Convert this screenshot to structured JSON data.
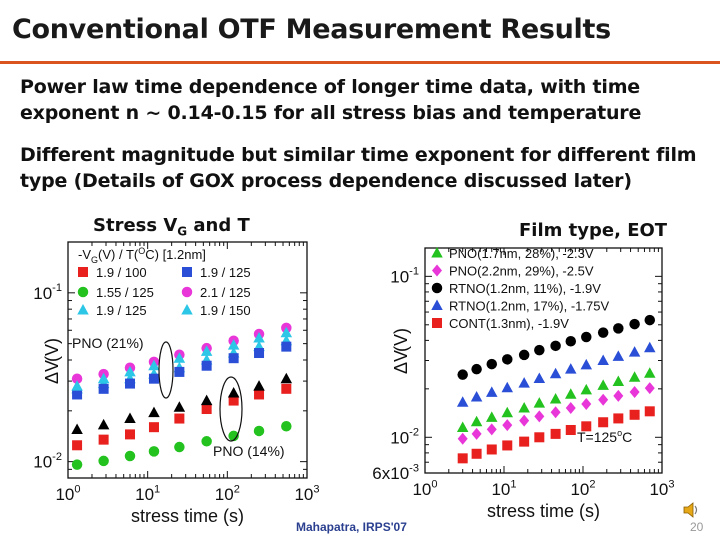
{
  "slide": {
    "title": "Conventional OTF Measurement Results",
    "para1_line1": "Power law time dependence of longer time data, with time",
    "para1_line2": "exponent n ~ 0.14-0.15 for all stress bias and temperature",
    "para2_line1": "Different magnitude but similar time exponent for different film",
    "para2_line2": "type (Details of GOX process dependence discussed later)",
    "left_label_main": "Stress V",
    "left_label_sub": "G",
    "left_label_tail": " and T",
    "right_label": "Film type, EOT",
    "footer": "Mahapatra, IRPS'07",
    "page_number": "20",
    "accent_color": "#d9541e",
    "icons": [
      "speaker-icon"
    ]
  },
  "chart_data": [
    {
      "type": "scatter",
      "xscale": "log",
      "yscale": "log",
      "xlim": [
        1,
        1000
      ],
      "ylim": [
        0.008,
        0.2
      ],
      "xlabel": "stress time (s)",
      "ylabel": "ΔV",
      "xticks": [
        {
          "base": "10",
          "exp": "0"
        },
        {
          "base": "10",
          "exp": "1"
        },
        {
          "base": "10",
          "exp": "2"
        },
        {
          "base": "10",
          "exp": "3"
        }
      ],
      "yticks": [
        {
          "value": 0.1,
          "base": "10",
          "exp": "-1"
        },
        {
          "value": 0.01,
          "base": "10",
          "exp": "-2"
        }
      ],
      "legend_title": "-V",
      "legend_title_sub": "G",
      "legend_title_tail": "(V) / T(",
      "legend_title_deg": "O",
      "legend_title_end": "C) [1.2nm]",
      "annotations": [
        "PNO (21%)",
        "PNO (14%)"
      ],
      "series": [
        {
          "name": "1.9 / 100",
          "color": "#e8201e",
          "marker": "square",
          "x": [
            1.3,
            2.8,
            6,
            12,
            25,
            55,
            120,
            250,
            550
          ],
          "y": [
            0.0125,
            0.0135,
            0.0145,
            0.016,
            0.018,
            0.0205,
            0.023,
            0.025,
            0.027
          ]
        },
        {
          "name": "1.55 / 125",
          "color": "#23c21f",
          "marker": "circle",
          "x": [
            1.3,
            2.8,
            6,
            12,
            25,
            55,
            120,
            250,
            550
          ],
          "y": [
            0.0096,
            0.0101,
            0.0108,
            0.0115,
            0.0122,
            0.0132,
            0.0142,
            0.0152,
            0.0162
          ]
        },
        {
          "name": "1.9 / 125",
          "color": "#2cc6e6",
          "marker": "triangle",
          "x": [
            1.3,
            2.8,
            6,
            12,
            25,
            55,
            120,
            250,
            550
          ],
          "y": [
            0.027,
            0.029,
            0.031,
            0.033,
            0.036,
            0.04,
            0.044,
            0.048,
            0.052
          ]
        },
        {
          "name": "1.9 / 125",
          "color": "#2a4fd6",
          "marker": "square",
          "x": [
            1.3,
            2.8,
            6,
            12,
            25,
            55,
            120,
            250,
            550
          ],
          "y": [
            0.025,
            0.027,
            0.029,
            0.031,
            0.034,
            0.037,
            0.041,
            0.044,
            0.048
          ]
        },
        {
          "name": "2.1 / 125",
          "color": "#e836d8",
          "marker": "circle",
          "x": [
            1.3,
            2.8,
            6,
            12,
            25,
            55,
            120,
            250,
            550
          ],
          "y": [
            0.031,
            0.033,
            0.036,
            0.039,
            0.043,
            0.047,
            0.052,
            0.057,
            0.062
          ]
        },
        {
          "name": "1.9 / 150",
          "color": "#2cc6e6",
          "marker": "triangle",
          "x": [
            1.3,
            2.8,
            6,
            12,
            25,
            55,
            120,
            250,
            550
          ],
          "y": [
            0.028,
            0.031,
            0.034,
            0.037,
            0.041,
            0.045,
            0.049,
            0.054,
            0.058
          ]
        },
        {
          "name": "",
          "color": "#000000",
          "marker": "triangle",
          "x": [
            1.3,
            2.8,
            6,
            12,
            25,
            55,
            120,
            250,
            550
          ],
          "y": [
            0.0155,
            0.0165,
            0.018,
            0.0195,
            0.021,
            0.023,
            0.0255,
            0.028,
            0.031
          ]
        }
      ]
    },
    {
      "type": "scatter",
      "xscale": "log",
      "yscale": "log",
      "xlim": [
        1,
        1000
      ],
      "ylim": [
        0.006,
        0.15
      ],
      "xlabel": "stress time (s)",
      "ylabel": "ΔV",
      "xticks": [
        {
          "base": "10",
          "exp": "0"
        },
        {
          "base": "10",
          "exp": "1"
        },
        {
          "base": "10",
          "exp": "2"
        },
        {
          "base": "10",
          "exp": "3"
        }
      ],
      "yticks": [
        {
          "value": 0.1,
          "base": "10",
          "exp": "-1"
        },
        {
          "value": 0.01,
          "base": "10",
          "exp": "-2"
        },
        {
          "value": 0.006,
          "base": "6x10",
          "exp": "-3"
        }
      ],
      "annotation": "T=125",
      "annotation_deg": "o",
      "annotation_tail": "C",
      "series": [
        {
          "name": "PNO(1.7nm, 28%), -2.3V",
          "color": "#23c21f",
          "marker": "triangle",
          "x": [
            3,
            4.5,
            7,
            11,
            18,
            28,
            45,
            70,
            110,
            180,
            280,
            450,
            700
          ],
          "y": [
            0.0115,
            0.0125,
            0.0133,
            0.0142,
            0.0152,
            0.0163,
            0.0173,
            0.0185,
            0.0197,
            0.021,
            0.0222,
            0.0236,
            0.025
          ]
        },
        {
          "name": "PNO(2.2nm, 29%), -2.5V",
          "color": "#e836d8",
          "marker": "diamond",
          "x": [
            3,
            4.5,
            7,
            11,
            18,
            28,
            45,
            70,
            110,
            180,
            280,
            450,
            700
          ],
          "y": [
            0.0098,
            0.0105,
            0.0112,
            0.0119,
            0.0127,
            0.0135,
            0.0143,
            0.0152,
            0.0161,
            0.0171,
            0.0181,
            0.0191,
            0.0202
          ]
        },
        {
          "name": "RTNO(1.2nm, 11%), -1.9V",
          "color": "#000000",
          "marker": "circle",
          "x": [
            3,
            4.5,
            7,
            11,
            18,
            28,
            45,
            70,
            110,
            180,
            280,
            450,
            700
          ],
          "y": [
            0.0245,
            0.0265,
            0.0285,
            0.0305,
            0.0325,
            0.0348,
            0.037,
            0.0395,
            0.042,
            0.0447,
            0.0475,
            0.0505,
            0.0535
          ]
        },
        {
          "name": "RTNO(1.2nm, 17%), -1.75V",
          "color": "#2a4fd6",
          "marker": "triangle",
          "x": [
            3,
            4.5,
            7,
            11,
            18,
            28,
            45,
            70,
            110,
            180,
            280,
            450,
            700
          ],
          "y": [
            0.0165,
            0.0178,
            0.019,
            0.0203,
            0.0217,
            0.0232,
            0.0248,
            0.0265,
            0.0282,
            0.03,
            0.0318,
            0.0338,
            0.036
          ]
        },
        {
          "name": "CONT(1.3nm), -1.9V",
          "color": "#e8201e",
          "marker": "square",
          "x": [
            3,
            4.5,
            7,
            11,
            18,
            28,
            45,
            70,
            110,
            180,
            280,
            450,
            700
          ],
          "y": [
            0.0074,
            0.0079,
            0.0084,
            0.0089,
            0.0094,
            0.01,
            0.0105,
            0.0111,
            0.0117,
            0.0124,
            0.0131,
            0.0138,
            0.0145
          ]
        }
      ]
    }
  ]
}
